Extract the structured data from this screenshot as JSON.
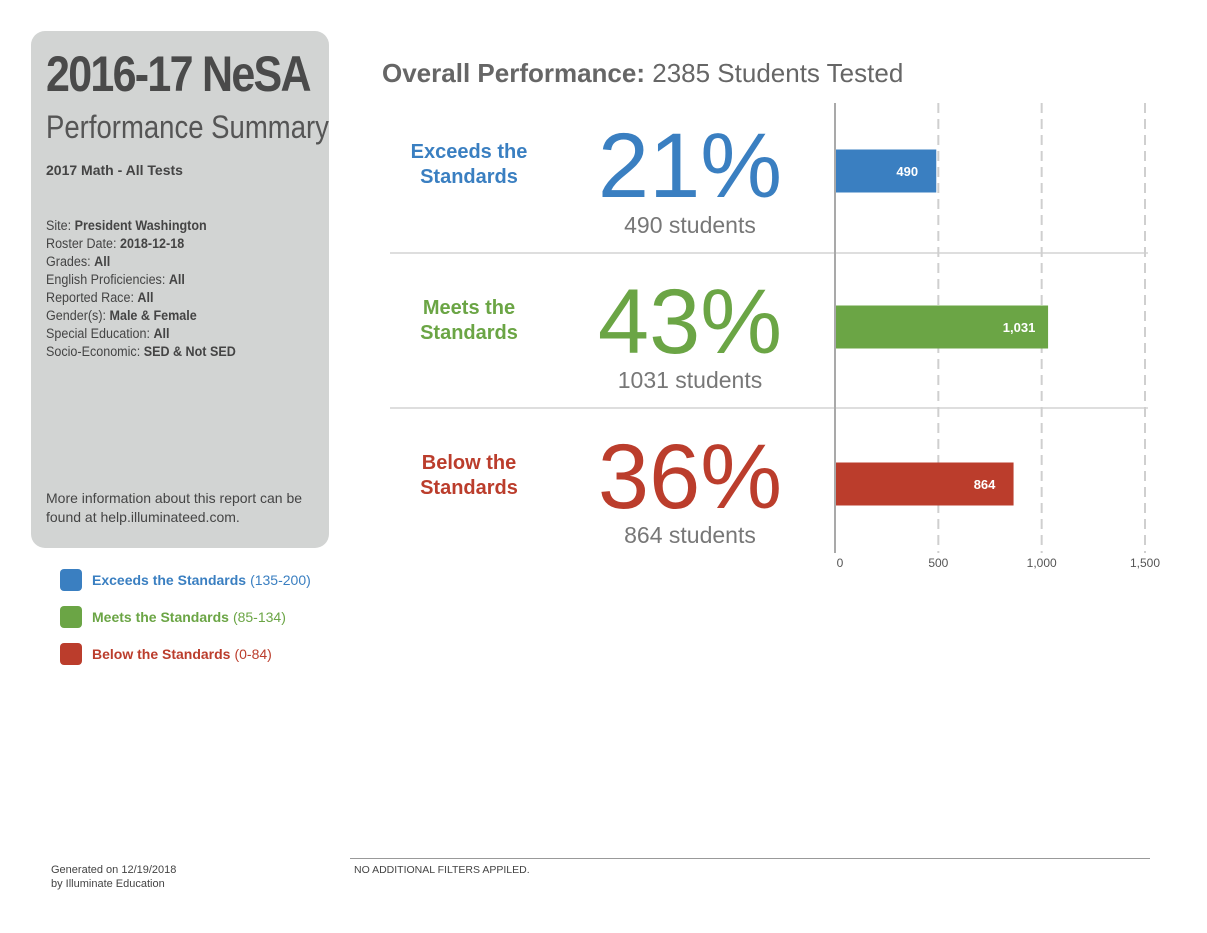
{
  "panel": {
    "title": "2016-17 NeSA",
    "subtitle": "Performance Summary",
    "test": "2017 Math - All Tests",
    "filters": [
      {
        "label": "Site: ",
        "value": "President Washington"
      },
      {
        "label": "Roster Date: ",
        "value": "2018-12-18"
      },
      {
        "label": "Grades: ",
        "value": "All"
      },
      {
        "label": "English Proficiencies: ",
        "value": "All"
      },
      {
        "label": "Reported Race: ",
        "value": "All"
      },
      {
        "label": "Gender(s): ",
        "value": "Male & Female"
      },
      {
        "label": "Special Education: ",
        "value": "All"
      },
      {
        "label": "Socio-Economic: ",
        "value": "SED & Not SED"
      }
    ],
    "more_info": "More information about this report can be found at help.illuminateed.com."
  },
  "legend": [
    {
      "name": "Exceeds the Standards",
      "range": "(135-200)",
      "color": "#3a7fc1"
    },
    {
      "name": "Meets the Standards",
      "range": "(85-134)",
      "color": "#6ba545"
    },
    {
      "name": "Below the Standards",
      "range": "(0-84)",
      "color": "#bb3d2c"
    }
  ],
  "header": {
    "bold": "Overall Performance:",
    "rest": " 2385 Students Tested"
  },
  "rows": [
    {
      "line1": "Exceeds the",
      "line2": "Standards",
      "pct": "21%",
      "count": "490 students",
      "color": "#3a7fc1"
    },
    {
      "line1": "Meets the",
      "line2": "Standards",
      "pct": "43%",
      "count": "1031 students",
      "color": "#6ba545"
    },
    {
      "line1": "Below the",
      "line2": "Standards",
      "pct": "36%",
      "count": "864 students",
      "color": "#bb3d2c"
    }
  ],
  "chart_data": {
    "type": "bar",
    "orientation": "horizontal",
    "categories": [
      "Exceeds the Standards",
      "Meets the Standards",
      "Below the Standards"
    ],
    "values": [
      490,
      1031,
      864
    ],
    "data_labels": [
      "490",
      "1,031",
      "864"
    ],
    "colors": [
      "#3a7fc1",
      "#6ba545",
      "#bb3d2c"
    ],
    "xlim": [
      0,
      1500
    ],
    "xticks": [
      0,
      500,
      1000,
      1500
    ],
    "xtick_labels": [
      "0",
      "500",
      "1,000",
      "1,500"
    ],
    "grid": true
  },
  "footer": {
    "generated_line1": "Generated on 12/19/2018",
    "generated_line2": "by Illuminate Education",
    "filters_note": "NO ADDITIONAL FILTERS APPILED."
  }
}
